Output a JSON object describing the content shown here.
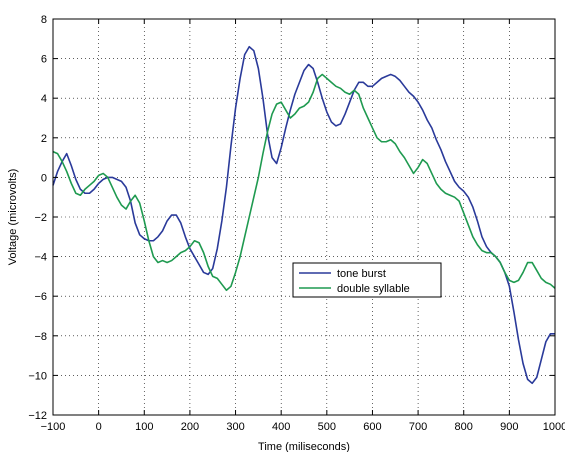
{
  "chart_data": {
    "type": "line",
    "title": "",
    "xlabel": "Time (miliseconds)",
    "ylabel": "Voltage (microvolts)",
    "xlim": [
      -100,
      1000
    ],
    "ylim": [
      -12,
      8
    ],
    "xticks": [
      -100,
      0,
      100,
      200,
      300,
      400,
      500,
      600,
      700,
      800,
      900,
      1000
    ],
    "yticks": [
      -12,
      -10,
      -8,
      -6,
      -4,
      -2,
      0,
      2,
      4,
      6,
      8
    ],
    "grid": true,
    "legend_position": "center-right",
    "series": [
      {
        "name": "tone burst",
        "color": "#2a3a9a",
        "points": [
          [
            -100,
            -0.4
          ],
          [
            -90,
            0.3
          ],
          [
            -80,
            0.8
          ],
          [
            -70,
            1.2
          ],
          [
            -60,
            0.6
          ],
          [
            -50,
            -0.1
          ],
          [
            -40,
            -0.6
          ],
          [
            -30,
            -0.8
          ],
          [
            -20,
            -0.8
          ],
          [
            -10,
            -0.6
          ],
          [
            0,
            -0.3
          ],
          [
            10,
            -0.1
          ],
          [
            20,
            0.0
          ],
          [
            30,
            0.0
          ],
          [
            40,
            -0.1
          ],
          [
            50,
            -0.2
          ],
          [
            60,
            -0.5
          ],
          [
            70,
            -1.2
          ],
          [
            80,
            -2.3
          ],
          [
            90,
            -2.9
          ],
          [
            100,
            -3.1
          ],
          [
            110,
            -3.2
          ],
          [
            120,
            -3.2
          ],
          [
            130,
            -3.0
          ],
          [
            140,
            -2.7
          ],
          [
            150,
            -2.2
          ],
          [
            160,
            -1.9
          ],
          [
            170,
            -1.9
          ],
          [
            180,
            -2.3
          ],
          [
            190,
            -3.0
          ],
          [
            200,
            -3.6
          ],
          [
            210,
            -4.0
          ],
          [
            220,
            -4.4
          ],
          [
            230,
            -4.8
          ],
          [
            240,
            -4.9
          ],
          [
            250,
            -4.6
          ],
          [
            260,
            -3.6
          ],
          [
            270,
            -2.2
          ],
          [
            280,
            -0.5
          ],
          [
            290,
            1.6
          ],
          [
            300,
            3.5
          ],
          [
            310,
            5.0
          ],
          [
            320,
            6.2
          ],
          [
            330,
            6.6
          ],
          [
            340,
            6.4
          ],
          [
            350,
            5.5
          ],
          [
            360,
            4.0
          ],
          [
            370,
            2.2
          ],
          [
            380,
            1.0
          ],
          [
            390,
            0.7
          ],
          [
            400,
            1.5
          ],
          [
            410,
            2.5
          ],
          [
            420,
            3.4
          ],
          [
            430,
            4.2
          ],
          [
            440,
            4.8
          ],
          [
            450,
            5.4
          ],
          [
            460,
            5.7
          ],
          [
            470,
            5.5
          ],
          [
            480,
            4.8
          ],
          [
            490,
            4.0
          ],
          [
            500,
            3.3
          ],
          [
            510,
            2.8
          ],
          [
            520,
            2.6
          ],
          [
            530,
            2.7
          ],
          [
            540,
            3.2
          ],
          [
            550,
            3.8
          ],
          [
            560,
            4.4
          ],
          [
            570,
            4.8
          ],
          [
            580,
            4.8
          ],
          [
            590,
            4.6
          ],
          [
            600,
            4.6
          ],
          [
            610,
            4.8
          ],
          [
            620,
            5.0
          ],
          [
            630,
            5.1
          ],
          [
            640,
            5.2
          ],
          [
            650,
            5.1
          ],
          [
            660,
            4.9
          ],
          [
            670,
            4.6
          ],
          [
            680,
            4.3
          ],
          [
            690,
            4.1
          ],
          [
            700,
            3.8
          ],
          [
            710,
            3.4
          ],
          [
            720,
            2.9
          ],
          [
            730,
            2.5
          ],
          [
            740,
            1.9
          ],
          [
            750,
            1.4
          ],
          [
            760,
            0.8
          ],
          [
            770,
            0.3
          ],
          [
            780,
            -0.2
          ],
          [
            790,
            -0.5
          ],
          [
            800,
            -0.7
          ],
          [
            810,
            -1.0
          ],
          [
            820,
            -1.5
          ],
          [
            830,
            -2.2
          ],
          [
            840,
            -3.0
          ],
          [
            850,
            -3.5
          ],
          [
            860,
            -3.8
          ],
          [
            870,
            -4.0
          ],
          [
            880,
            -4.3
          ],
          [
            890,
            -4.8
          ],
          [
            900,
            -5.5
          ],
          [
            910,
            -6.8
          ],
          [
            920,
            -8.2
          ],
          [
            930,
            -9.4
          ],
          [
            940,
            -10.2
          ],
          [
            950,
            -10.4
          ],
          [
            960,
            -10.1
          ],
          [
            970,
            -9.2
          ],
          [
            980,
            -8.3
          ],
          [
            990,
            -7.9
          ],
          [
            1000,
            -7.9
          ]
        ]
      },
      {
        "name": "double syllable",
        "color": "#1f9a50",
        "points": [
          [
            -100,
            1.3
          ],
          [
            -90,
            1.2
          ],
          [
            -80,
            0.8
          ],
          [
            -70,
            0.3
          ],
          [
            -60,
            -0.3
          ],
          [
            -50,
            -0.8
          ],
          [
            -40,
            -0.9
          ],
          [
            -30,
            -0.6
          ],
          [
            -20,
            -0.4
          ],
          [
            -10,
            -0.2
          ],
          [
            0,
            0.1
          ],
          [
            10,
            0.2
          ],
          [
            20,
            0.0
          ],
          [
            30,
            -0.5
          ],
          [
            40,
            -1.0
          ],
          [
            50,
            -1.4
          ],
          [
            60,
            -1.6
          ],
          [
            70,
            -1.2
          ],
          [
            80,
            -0.9
          ],
          [
            90,
            -1.3
          ],
          [
            100,
            -2.2
          ],
          [
            110,
            -3.2
          ],
          [
            120,
            -4.0
          ],
          [
            130,
            -4.3
          ],
          [
            140,
            -4.2
          ],
          [
            150,
            -4.3
          ],
          [
            160,
            -4.2
          ],
          [
            170,
            -4.0
          ],
          [
            180,
            -3.8
          ],
          [
            190,
            -3.7
          ],
          [
            200,
            -3.5
          ],
          [
            210,
            -3.2
          ],
          [
            220,
            -3.3
          ],
          [
            230,
            -3.8
          ],
          [
            240,
            -4.5
          ],
          [
            250,
            -5.0
          ],
          [
            260,
            -5.1
          ],
          [
            270,
            -5.4
          ],
          [
            280,
            -5.7
          ],
          [
            290,
            -5.5
          ],
          [
            300,
            -4.8
          ],
          [
            310,
            -4.0
          ],
          [
            320,
            -3.0
          ],
          [
            330,
            -2.0
          ],
          [
            340,
            -1.0
          ],
          [
            350,
            0.0
          ],
          [
            360,
            1.2
          ],
          [
            370,
            2.3
          ],
          [
            380,
            3.2
          ],
          [
            390,
            3.7
          ],
          [
            400,
            3.8
          ],
          [
            410,
            3.4
          ],
          [
            420,
            3.0
          ],
          [
            430,
            3.2
          ],
          [
            440,
            3.5
          ],
          [
            450,
            3.6
          ],
          [
            460,
            3.8
          ],
          [
            470,
            4.3
          ],
          [
            480,
            5.0
          ],
          [
            490,
            5.2
          ],
          [
            500,
            5.0
          ],
          [
            510,
            4.8
          ],
          [
            520,
            4.6
          ],
          [
            530,
            4.5
          ],
          [
            540,
            4.3
          ],
          [
            550,
            4.2
          ],
          [
            560,
            4.4
          ],
          [
            570,
            4.2
          ],
          [
            580,
            3.5
          ],
          [
            590,
            3.0
          ],
          [
            600,
            2.5
          ],
          [
            610,
            2.0
          ],
          [
            620,
            1.8
          ],
          [
            630,
            1.8
          ],
          [
            640,
            1.9
          ],
          [
            650,
            1.7
          ],
          [
            660,
            1.3
          ],
          [
            670,
            1.0
          ],
          [
            680,
            0.6
          ],
          [
            690,
            0.2
          ],
          [
            700,
            0.5
          ],
          [
            710,
            0.9
          ],
          [
            720,
            0.7
          ],
          [
            730,
            0.2
          ],
          [
            740,
            -0.3
          ],
          [
            750,
            -0.6
          ],
          [
            760,
            -0.8
          ],
          [
            770,
            -0.9
          ],
          [
            780,
            -1.0
          ],
          [
            790,
            -1.2
          ],
          [
            800,
            -1.8
          ],
          [
            810,
            -2.4
          ],
          [
            820,
            -3.0
          ],
          [
            830,
            -3.4
          ],
          [
            840,
            -3.7
          ],
          [
            850,
            -3.8
          ],
          [
            860,
            -3.8
          ],
          [
            870,
            -4.0
          ],
          [
            880,
            -4.3
          ],
          [
            890,
            -4.8
          ],
          [
            900,
            -5.2
          ],
          [
            910,
            -5.3
          ],
          [
            920,
            -5.2
          ],
          [
            930,
            -4.8
          ],
          [
            940,
            -4.3
          ],
          [
            950,
            -4.3
          ],
          [
            960,
            -4.7
          ],
          [
            970,
            -5.1
          ],
          [
            980,
            -5.3
          ],
          [
            990,
            -5.4
          ],
          [
            1000,
            -5.6
          ]
        ]
      }
    ]
  }
}
